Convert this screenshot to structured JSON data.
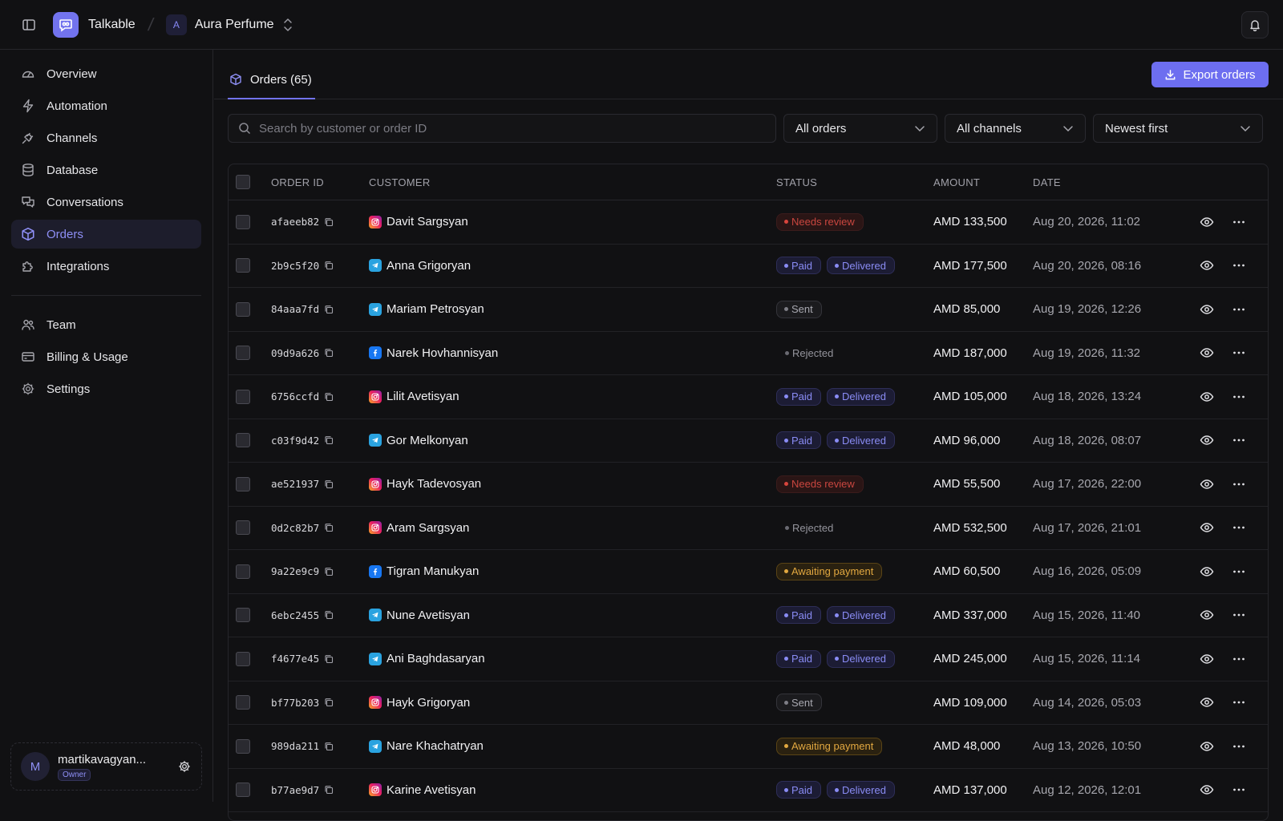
{
  "app": {
    "brand": "Talkable",
    "workspace_initial": "A",
    "workspace_name": "Aura Perfume"
  },
  "sidebar": {
    "items": [
      {
        "label": "Overview",
        "icon": "gauge-icon"
      },
      {
        "label": "Automation",
        "icon": "lightning-icon"
      },
      {
        "label": "Channels",
        "icon": "plug-icon"
      },
      {
        "label": "Database",
        "icon": "database-icon"
      },
      {
        "label": "Conversations",
        "icon": "chat-icon"
      },
      {
        "label": "Orders",
        "icon": "box-icon",
        "active": true
      },
      {
        "label": "Integrations",
        "icon": "puzzle-icon"
      }
    ],
    "secondary": [
      {
        "label": "Team",
        "icon": "users-icon"
      },
      {
        "label": "Billing & Usage",
        "icon": "card-icon"
      },
      {
        "label": "Settings",
        "icon": "gear-icon"
      }
    ],
    "user": {
      "initial": "M",
      "name": "martikavagyan...",
      "role": "Owner"
    }
  },
  "tabs": {
    "orders_label": "Orders (65)"
  },
  "toolbar": {
    "export_label": "Export orders"
  },
  "filters": {
    "search_placeholder": "Search by customer or order ID",
    "status_filter": "All orders",
    "channel_filter": "All channels",
    "sort": "Newest first"
  },
  "table": {
    "columns": {
      "order_id": "ORDER ID",
      "customer": "CUSTOMER",
      "status": "STATUS",
      "amount": "AMOUNT",
      "date": "DATE"
    },
    "rows": [
      {
        "id": "afaeeb82",
        "channel": "instagram",
        "customer": "Davit Sargsyan",
        "statuses": [
          {
            "label": "Needs review",
            "kind": "review"
          }
        ],
        "amount": "AMD 133,500",
        "date": "Aug 20, 2026, 11:02"
      },
      {
        "id": "2b9c5f20",
        "channel": "telegram",
        "customer": "Anna Grigoryan",
        "statuses": [
          {
            "label": "Paid",
            "kind": "paid"
          },
          {
            "label": "Delivered",
            "kind": "paid"
          }
        ],
        "amount": "AMD 177,500",
        "date": "Aug 20, 2026, 08:16"
      },
      {
        "id": "84aaa7fd",
        "channel": "telegram",
        "customer": "Mariam Petrosyan",
        "statuses": [
          {
            "label": "Sent",
            "kind": "sent"
          }
        ],
        "amount": "AMD 85,000",
        "date": "Aug 19, 2026, 12:26"
      },
      {
        "id": "09d9a626",
        "channel": "facebook",
        "customer": "Narek Hovhannisyan",
        "statuses": [
          {
            "label": "Rejected",
            "kind": "rejected"
          }
        ],
        "amount": "AMD 187,000",
        "date": "Aug 19, 2026, 11:32"
      },
      {
        "id": "6756ccfd",
        "channel": "instagram",
        "customer": "Lilit Avetisyan",
        "statuses": [
          {
            "label": "Paid",
            "kind": "paid"
          },
          {
            "label": "Delivered",
            "kind": "paid"
          }
        ],
        "amount": "AMD 105,000",
        "date": "Aug 18, 2026, 13:24"
      },
      {
        "id": "c03f9d42",
        "channel": "telegram",
        "customer": "Gor Melkonyan",
        "statuses": [
          {
            "label": "Paid",
            "kind": "paid"
          },
          {
            "label": "Delivered",
            "kind": "paid"
          }
        ],
        "amount": "AMD 96,000",
        "date": "Aug 18, 2026, 08:07"
      },
      {
        "id": "ae521937",
        "channel": "instagram",
        "customer": "Hayk Tadevosyan",
        "statuses": [
          {
            "label": "Needs review",
            "kind": "review"
          }
        ],
        "amount": "AMD 55,500",
        "date": "Aug 17, 2026, 22:00"
      },
      {
        "id": "0d2c82b7",
        "channel": "instagram",
        "customer": "Aram Sargsyan",
        "statuses": [
          {
            "label": "Rejected",
            "kind": "rejected"
          }
        ],
        "amount": "AMD 532,500",
        "date": "Aug 17, 2026, 21:01"
      },
      {
        "id": "9a22e9c9",
        "channel": "facebook",
        "customer": "Tigran Manukyan",
        "statuses": [
          {
            "label": "Awaiting payment",
            "kind": "await"
          }
        ],
        "amount": "AMD 60,500",
        "date": "Aug 16, 2026, 05:09"
      },
      {
        "id": "6ebc2455",
        "channel": "telegram",
        "customer": "Nune Avetisyan",
        "statuses": [
          {
            "label": "Paid",
            "kind": "paid"
          },
          {
            "label": "Delivered",
            "kind": "paid"
          }
        ],
        "amount": "AMD 337,000",
        "date": "Aug 15, 2026, 11:40"
      },
      {
        "id": "f4677e45",
        "channel": "telegram",
        "customer": "Ani Baghdasaryan",
        "statuses": [
          {
            "label": "Paid",
            "kind": "paid"
          },
          {
            "label": "Delivered",
            "kind": "paid"
          }
        ],
        "amount": "AMD 245,000",
        "date": "Aug 15, 2026, 11:14"
      },
      {
        "id": "bf77b203",
        "channel": "instagram",
        "customer": "Hayk Grigoryan",
        "statuses": [
          {
            "label": "Sent",
            "kind": "sent"
          }
        ],
        "amount": "AMD 109,000",
        "date": "Aug 14, 2026, 05:03"
      },
      {
        "id": "989da211",
        "channel": "telegram",
        "customer": "Nare Khachatryan",
        "statuses": [
          {
            "label": "Awaiting payment",
            "kind": "await"
          }
        ],
        "amount": "AMD 48,000",
        "date": "Aug 13, 2026, 10:50"
      },
      {
        "id": "b77ae9d7",
        "channel": "instagram",
        "customer": "Karine Avetisyan",
        "statuses": [
          {
            "label": "Paid",
            "kind": "paid"
          },
          {
            "label": "Delivered",
            "kind": "paid"
          }
        ],
        "amount": "AMD 137,000",
        "date": "Aug 12, 2026, 12:01"
      }
    ]
  },
  "colors": {
    "accent": "#6d6ef0",
    "background": "#111113",
    "review": "#c9463f",
    "await": "#e2a840"
  }
}
